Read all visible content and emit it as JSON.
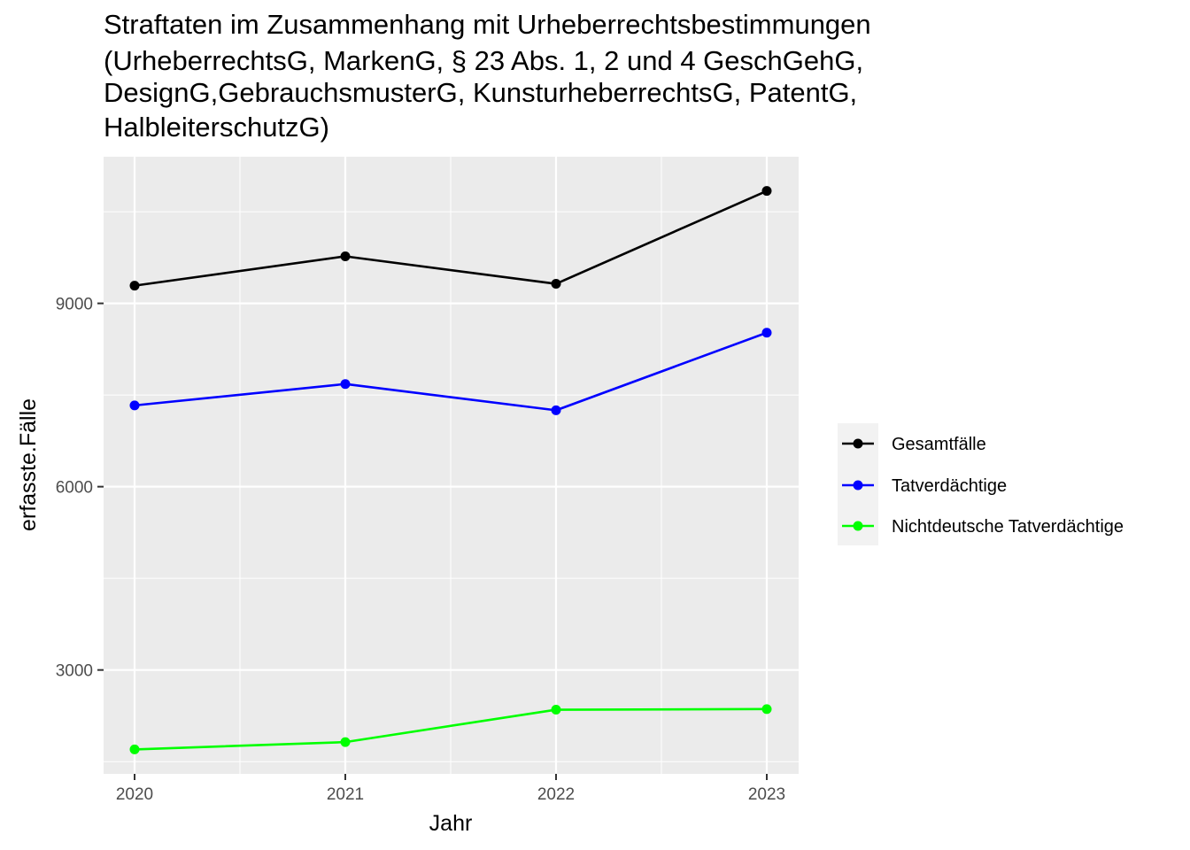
{
  "chart_data": {
    "type": "line",
    "title_lines": [
      "Straftaten im Zusammenhang mit Urheberrechtsbestimmungen",
      "(UrheberrechtsG, MarkenG, § 23 Abs. 1, 2 und 4 GeschGehG,",
      "DesignG,GebrauchsmusterG, KunsturheberrechtsG, PatentG,",
      "HalbleiterschutzG)"
    ],
    "xlabel": "Jahr",
    "ylabel": "erfasste.Fälle",
    "x": [
      "2020",
      "2021",
      "2022",
      "2023"
    ],
    "y_ticks": [
      "3000",
      "6000",
      "9000"
    ],
    "ylim": [
      1300,
      11400
    ],
    "grid": true,
    "legend_position": "right",
    "series": [
      {
        "name": "Gesamtfälle",
        "color": "#000000",
        "values": [
          9290,
          9770,
          9320,
          10840
        ]
      },
      {
        "name": "Tatverdächtige",
        "color": "#0000ff",
        "values": [
          7330,
          7680,
          7250,
          8520
        ]
      },
      {
        "name": "Nichtdeutsche Tatverdächtige",
        "color": "#00ff00",
        "values": [
          1700,
          1820,
          2350,
          2360
        ]
      }
    ]
  }
}
